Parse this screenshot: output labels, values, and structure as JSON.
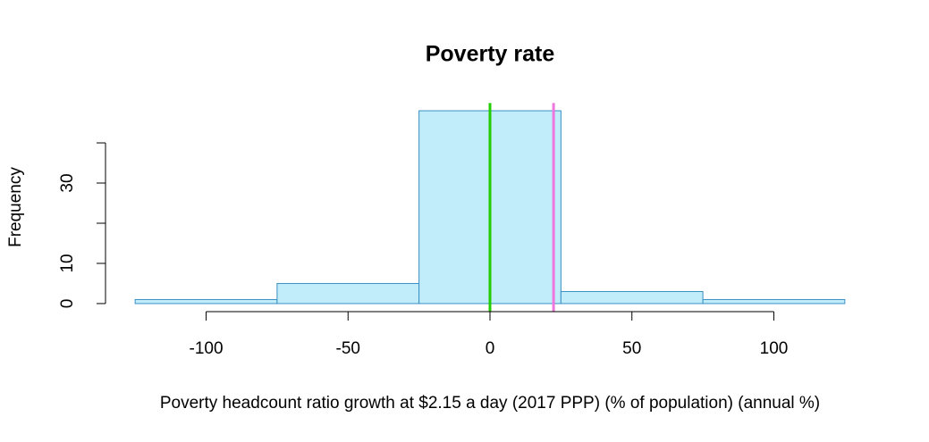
{
  "chart_data": {
    "type": "histogram",
    "title": "Poverty rate",
    "x_label": "Poverty headcount ratio growth at $2.15 a day (2017 PPP) (% of population) (annual %)",
    "y_label": "Frequency",
    "bins": [
      -125,
      -75,
      -25,
      25,
      75,
      125
    ],
    "values": [
      1,
      5,
      48,
      3,
      1
    ],
    "color": "#c1ecfa",
    "edge_color": "#3a8fc4",
    "xlim": [
      -135,
      135
    ],
    "xticks": [
      -100,
      -50,
      0,
      50,
      100
    ],
    "ylim": [
      -1.92,
      49.92
    ],
    "yticks": [
      0,
      10,
      20,
      30,
      40
    ],
    "vlines": [
      {
        "value": 0,
        "color": "#22cc00"
      },
      {
        "value": 22.4,
        "color": "#ee77dd"
      }
    ]
  }
}
